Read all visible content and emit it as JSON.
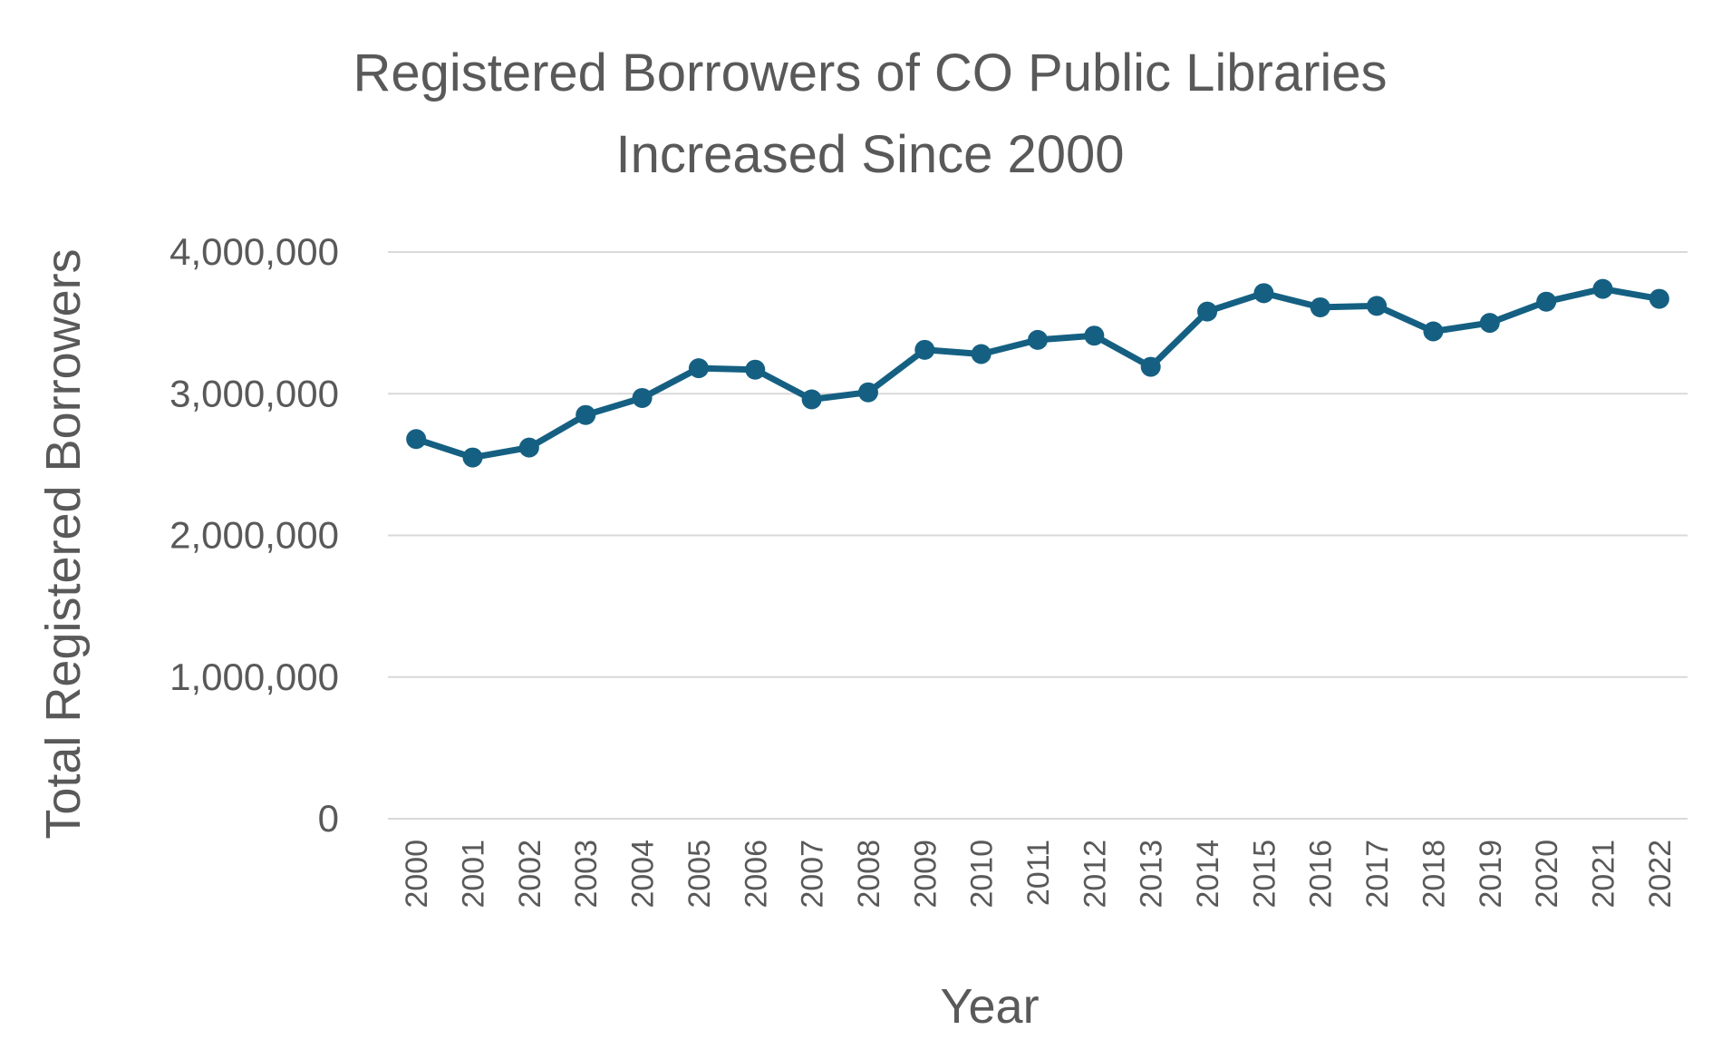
{
  "chart_data": {
    "type": "line",
    "title_lines": [
      "Registered Borrowers of CO Public Libraries",
      "Increased Since 2000"
    ],
    "xlabel": "Year",
    "ylabel": "Total Registered Borrowers",
    "ylim": [
      0,
      4000000
    ],
    "yticks": [
      0,
      1000000,
      2000000,
      3000000,
      4000000
    ],
    "ytick_labels": [
      "0",
      "1,000,000",
      "2,000,000",
      "3,000,000",
      "4,000,000"
    ],
    "grid": true,
    "legend": "none",
    "color": "#156082",
    "x": [
      "2000",
      "2001",
      "2002",
      "2003",
      "2004",
      "2005",
      "2006",
      "2007",
      "2008",
      "2009",
      "2010",
      "2011",
      "2012",
      "2013",
      "2014",
      "2015",
      "2016",
      "2017",
      "2018",
      "2019",
      "2020",
      "2021",
      "2022"
    ],
    "series": [
      {
        "values": [
          2680000,
          2550000,
          2620000,
          2850000,
          2970000,
          3180000,
          3170000,
          2960000,
          3010000,
          3310000,
          3280000,
          3380000,
          3410000,
          3190000,
          3580000,
          3710000,
          3610000,
          3620000,
          3440000,
          3500000,
          3650000,
          3740000,
          3670000
        ]
      }
    ]
  }
}
